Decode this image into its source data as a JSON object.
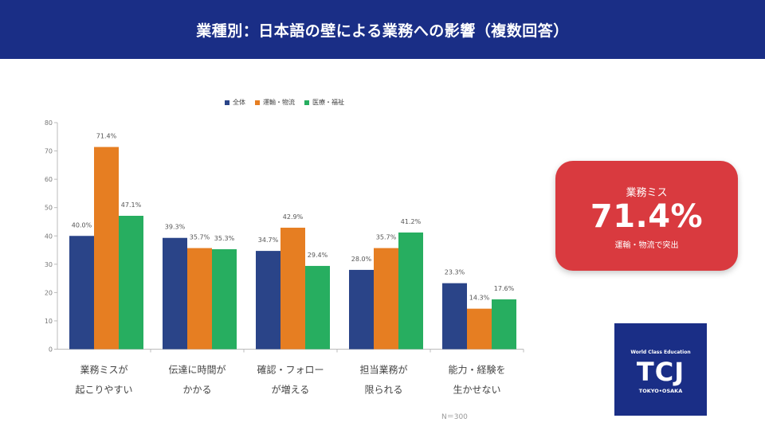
{
  "header": {
    "title": "業種別：日本語の壁による業務への影響（複数回答）"
  },
  "legend": [
    {
      "label": "全体",
      "color": "#2a4488"
    },
    {
      "label": "運輸・物流",
      "color": "#e67e22"
    },
    {
      "label": "医療・福祉",
      "color": "#27ae60"
    }
  ],
  "chart_data": {
    "type": "bar",
    "categories": [
      [
        "業務ミスが",
        "起こりやすい"
      ],
      [
        "伝達に時間が",
        "かかる"
      ],
      [
        "確認・フォロー",
        "が増える"
      ],
      [
        "担当業務が",
        "限られる"
      ],
      [
        "能力・経験を",
        "生かせない"
      ]
    ],
    "series": [
      {
        "name": "全体",
        "values": [
          40.0,
          39.3,
          34.7,
          28.0,
          23.3
        ],
        "color": "#2a4488"
      },
      {
        "name": "運輸・物流",
        "values": [
          71.4,
          35.7,
          42.9,
          35.7,
          14.3
        ],
        "color": "#e67e22"
      },
      {
        "name": "医療・福祉",
        "values": [
          47.1,
          35.3,
          29.4,
          41.2,
          17.6
        ],
        "color": "#27ae60"
      }
    ],
    "ylim": [
      0,
      80
    ],
    "yticks": [
      0,
      10,
      20,
      30,
      40,
      50,
      60,
      70,
      80
    ],
    "data_label_suffix": "%",
    "grid": false,
    "legend_position": "top"
  },
  "note": "N＝300",
  "callout": {
    "label": "業務ミス",
    "value": "71.4%",
    "sub": "運輸・物流で突出"
  },
  "logo": {
    "top": "World Class Education",
    "main": "TCJ",
    "bottom": "TOKYO•OSAKA"
  }
}
